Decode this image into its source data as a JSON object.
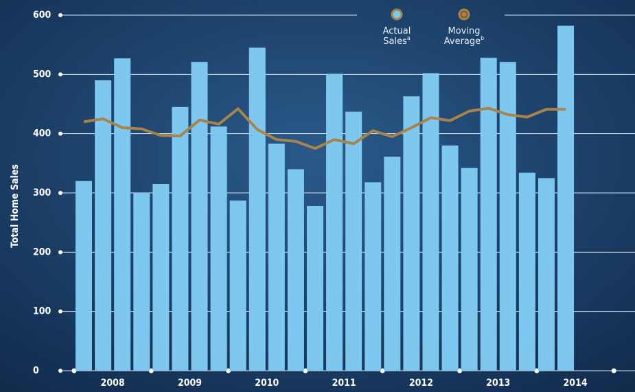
{
  "chart_data": {
    "type": "bar",
    "y_label": "Total Home Sales",
    "categories": [
      "2008",
      null,
      null,
      null,
      "2009",
      null,
      null,
      null,
      "2010",
      null,
      null,
      null,
      "2011",
      null,
      null,
      null,
      "2012",
      null,
      null,
      null,
      "2013",
      null,
      null,
      null,
      "2014",
      null
    ],
    "series": [
      {
        "name": "Actual Sales",
        "note": "a",
        "type": "bar",
        "color": "#7ec8f0",
        "values": [
          320,
          490,
          527,
          300,
          315,
          445,
          521,
          412,
          287,
          545,
          383,
          340,
          278,
          501,
          437,
          318,
          361,
          463,
          502,
          380,
          342,
          528,
          521,
          334,
          325,
          582
        ]
      },
      {
        "name": "Moving Average",
        "note": "b",
        "type": "line",
        "color": "#a8834a",
        "values": [
          420,
          425,
          410,
          408,
          397,
          396,
          423,
          416,
          442,
          407,
          390,
          387,
          375,
          390,
          383,
          405,
          395,
          410,
          427,
          422,
          438,
          443,
          432,
          428,
          441,
          441
        ]
      }
    ],
    "ylim": [
      0,
      600
    ],
    "yticks": [
      0,
      100,
      200,
      300,
      400,
      500,
      600
    ],
    "grid": true
  }
}
